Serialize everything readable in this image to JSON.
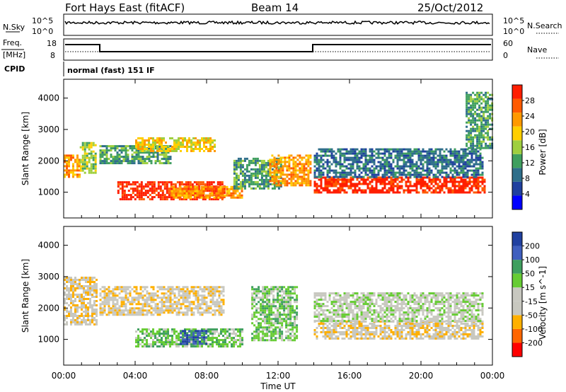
{
  "header": {
    "station": "Fort Hays East (fitACF)",
    "beam": "Beam 14",
    "date": "25/Oct/2012"
  },
  "noise_panel": {
    "left_label": "N.Sky",
    "right_label": "N.Search",
    "left_ticks": [
      "10^5",
      "10^0"
    ],
    "right_ticks": [
      "10^5",
      "10^0"
    ]
  },
  "freq_panel": {
    "left_label_top": "Freq.",
    "left_label_bottom": "[MHz]",
    "right_label": "Nave",
    "left_ticks": [
      "18",
      "8"
    ],
    "right_ticks": [
      "60",
      "0"
    ],
    "cpid_label": "CPID",
    "cpid_text": "normal (fast) 151 IF"
  },
  "colors": {
    "power": [
      "#0000ff",
      "#1f3f9f",
      "#2e6e8a",
      "#3f9f5f",
      "#9fcf3f",
      "#ffcf00",
      "#ff9900",
      "#ff5a00",
      "#ff1e00"
    ],
    "velocity": [
      "#ff0000",
      "#ff6600",
      "#ffb000",
      "#c8c8c0",
      "#c8c8c0",
      "#66cc33",
      "#3f9f5f",
      "#3f5fbf",
      "#2040a0"
    ]
  },
  "chart_data": [
    {
      "type": "heatmap",
      "title": "",
      "quantity": "Power",
      "xlabel": "",
      "ylabel": "Slant Range [km]",
      "colorbar_label": "Power [dB]",
      "colorbar_ticks": [
        "4",
        "8",
        "12",
        "16",
        "20",
        "24",
        "28"
      ],
      "y_ticks": [
        "1000",
        "2000",
        "3000",
        "4000"
      ],
      "ylim": [
        180,
        4600
      ],
      "regions": [
        {
          "t": [
            0,
            0.9
          ],
          "r": [
            1500,
            2200
          ],
          "level": 6
        },
        {
          "t": [
            0.9,
            1.8
          ],
          "r": [
            1600,
            2600
          ],
          "level": 4
        },
        {
          "t": [
            2,
            6
          ],
          "r": [
            1900,
            2500
          ],
          "level": 3
        },
        {
          "t": [
            4,
            8.5
          ],
          "r": [
            2300,
            2750
          ],
          "level": 5
        },
        {
          "t": [
            3,
            9
          ],
          "r": [
            800,
            1350
          ],
          "level": 8
        },
        {
          "t": [
            6,
            10
          ],
          "r": [
            800,
            1200
          ],
          "level": 6
        },
        {
          "t": [
            9.5,
            12.2
          ],
          "r": [
            1100,
            2100
          ],
          "level": 3
        },
        {
          "t": [
            11.5,
            13.8
          ],
          "r": [
            1200,
            2200
          ],
          "level": 6
        },
        {
          "t": [
            14,
            23.6
          ],
          "r": [
            1000,
            1500
          ],
          "level": 8
        },
        {
          "t": [
            14,
            23.5
          ],
          "r": [
            1500,
            2400
          ],
          "level": 2
        },
        {
          "t": [
            22.5,
            24
          ],
          "r": [
            2400,
            4200
          ],
          "level": 3
        }
      ]
    },
    {
      "type": "heatmap",
      "title": "",
      "quantity": "Velocity",
      "xlabel": "Time UT",
      "ylabel": "Slant Range [km]",
      "colorbar_label": "Velocity [m s^-1]",
      "colorbar_ticks": [
        "-200",
        "-100",
        "-50",
        "-15",
        "15",
        "50",
        "100",
        "200"
      ],
      "y_ticks": [
        "1000",
        "2000",
        "3000",
        "4000"
      ],
      "x_ticks": [
        "00:00",
        "04:00",
        "08:00",
        "12:00",
        "16:00",
        "20:00",
        "00:00"
      ],
      "xlim": [
        0,
        24
      ],
      "ylim": [
        180,
        4600
      ],
      "regions": [
        {
          "t": [
            0,
            1.8
          ],
          "r": [
            1500,
            3000
          ],
          "level": 3
        },
        {
          "t": [
            2,
            9
          ],
          "r": [
            1800,
            2700
          ],
          "level": 3
        },
        {
          "t": [
            4,
            10
          ],
          "r": [
            800,
            1350
          ],
          "level": 5
        },
        {
          "t": [
            6.5,
            8
          ],
          "r": [
            850,
            1300
          ],
          "level": 7
        },
        {
          "t": [
            10.5,
            13
          ],
          "r": [
            1000,
            2700
          ],
          "level": 5
        },
        {
          "t": [
            14,
            23.5
          ],
          "r": [
            1000,
            1600
          ],
          "level": 3
        },
        {
          "t": [
            14,
            23.5
          ],
          "r": [
            1600,
            2500
          ],
          "level": 4
        }
      ]
    }
  ]
}
